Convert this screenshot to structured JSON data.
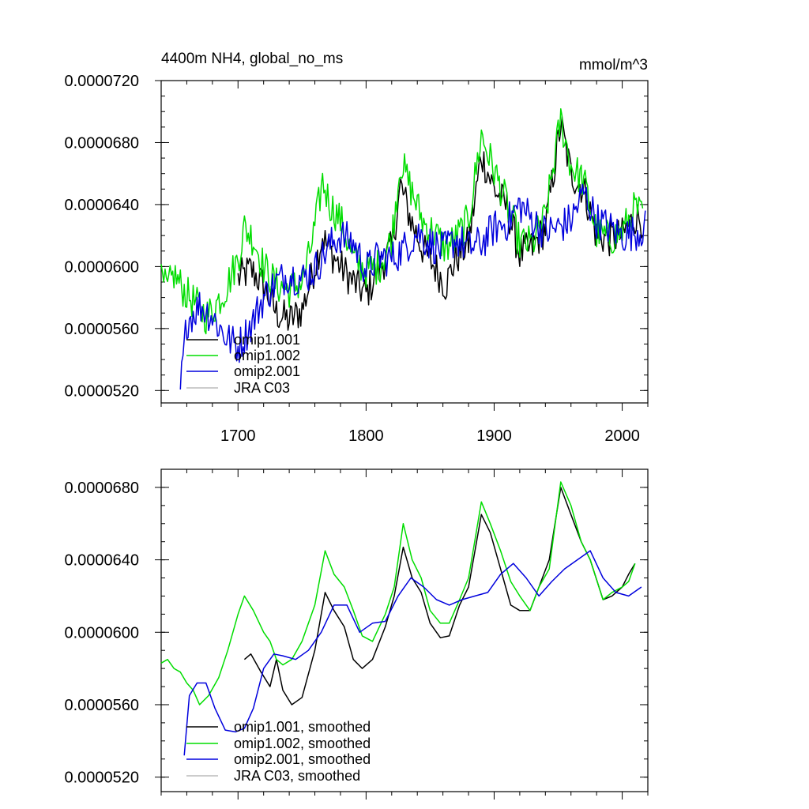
{
  "chart_data": [
    {
      "type": "line",
      "title": "4400m NH4, global_no_ms",
      "units": "mmol/m^3",
      "xlabel": "",
      "ylabel": "",
      "xlim": [
        1640,
        2020
      ],
      "ylim": [
        5.12e-05,
        7.2e-05
      ],
      "y_ticks": [
        5.2e-05,
        5.6e-05,
        6e-05,
        6.4e-05,
        6.8e-05,
        7.2e-05
      ],
      "y_tick_labels": [
        "0.0000520",
        "0.0000560",
        "0.0000600",
        "0.0000640",
        "0.0000680",
        "0.0000720"
      ],
      "x_ticks": [
        1700,
        1800,
        1900,
        2000
      ],
      "x_tick_labels": [
        "1700",
        "1800",
        "1900",
        "2000"
      ],
      "legend": [
        "omip1.001",
        "omip1.002",
        "omip2.001",
        "JRA C03"
      ],
      "series": [
        {
          "name": "omip1.001",
          "color": "#000000",
          "x_range": [
            1700,
            2016
          ],
          "x": [
            1700,
            1710,
            1720,
            1730,
            1740,
            1750,
            1760,
            1766,
            1770,
            1780,
            1790,
            1800,
            1810,
            1820,
            1827,
            1835,
            1845,
            1855,
            1862,
            1870,
            1880,
            1890,
            1900,
            1910,
            1920,
            1930,
            1940,
            1952,
            1960,
            1970,
            1980,
            1990,
            2000,
            2010,
            2016
          ],
          "y": [
            5.92e-05,
            5.98e-05,
            5.88e-05,
            5.7e-05,
            5.65e-05,
            5.72e-05,
            6e-05,
            6.2e-05,
            6.12e-05,
            6e-05,
            5.9e-05,
            5.82e-05,
            5.98e-05,
            6.12e-05,
            6.52e-05,
            6.3e-05,
            6.1e-05,
            5.98e-05,
            5.88e-05,
            6.05e-05,
            6.15e-05,
            6.72e-05,
            6.5e-05,
            6.38e-05,
            6.08e-05,
            6.12e-05,
            6.25e-05,
            6.92e-05,
            6.6e-05,
            6.5e-05,
            6.2e-05,
            6.18e-05,
            6.2e-05,
            6.32e-05,
            6.3e-05
          ]
        },
        {
          "name": "omip1.002",
          "color": "#00dd00",
          "x_range": [
            1640,
            2016
          ],
          "x": [
            1640,
            1645,
            1650,
            1655,
            1660,
            1668,
            1675,
            1680,
            1690,
            1700,
            1705,
            1712,
            1720,
            1730,
            1740,
            1750,
            1755,
            1760,
            1766,
            1772,
            1780,
            1790,
            1800,
            1810,
            1820,
            1827,
            1835,
            1845,
            1855,
            1862,
            1870,
            1880,
            1890,
            1900,
            1910,
            1920,
            1930,
            1940,
            1952,
            1960,
            1970,
            1980,
            1990,
            2000,
            2010,
            2016
          ],
          "y": [
            5.9e-05,
            5.85e-05,
            5.95e-05,
            5.88e-05,
            5.82e-05,
            5.75e-05,
            5.68e-05,
            5.72e-05,
            5.85e-05,
            6.05e-05,
            6.25e-05,
            6.18e-05,
            6e-05,
            5.88e-05,
            5.85e-05,
            5.9e-05,
            6.05e-05,
            6.25e-05,
            6.55e-05,
            6.4e-05,
            6.3e-05,
            6.05e-05,
            5.98e-05,
            6e-05,
            6.18e-05,
            6.68e-05,
            6.5e-05,
            6.28e-05,
            6.2e-05,
            6.12e-05,
            6.18e-05,
            6.3e-05,
            6.85e-05,
            6.62e-05,
            6.4e-05,
            6.15e-05,
            6.15e-05,
            6.32e-05,
            6.95e-05,
            6.65e-05,
            6.55e-05,
            6.22e-05,
            6.18e-05,
            6.22e-05,
            6.38e-05,
            6.32e-05
          ]
        },
        {
          "name": "omip2.001",
          "color": "#0000dd",
          "x_range": [
            1655,
            2018
          ],
          "x": [
            1655,
            1660,
            1670,
            1680,
            1690,
            1700,
            1710,
            1720,
            1730,
            1740,
            1750,
            1760,
            1770,
            1780,
            1790,
            1800,
            1810,
            1820,
            1830,
            1840,
            1850,
            1860,
            1870,
            1880,
            1890,
            1900,
            1910,
            1920,
            1930,
            1940,
            1950,
            1960,
            1970,
            1980,
            1990,
            2000,
            2010,
            2018
          ],
          "y": [
            5.2e-05,
            5.65e-05,
            5.75e-05,
            5.68e-05,
            5.55e-05,
            5.48e-05,
            5.62e-05,
            5.8e-05,
            5.9e-05,
            5.95e-05,
            5.92e-05,
            5.98e-05,
            6.12e-05,
            6.2e-05,
            6.15e-05,
            5.98e-05,
            6.06e-05,
            6.05e-05,
            6.12e-05,
            6.22e-05,
            6.15e-05,
            6.1e-05,
            6.18e-05,
            6.12e-05,
            6.15e-05,
            6.25e-05,
            6.28e-05,
            6.4e-05,
            6.3e-05,
            6.22e-05,
            6.25e-05,
            6.3e-05,
            6.48e-05,
            6.3e-05,
            6.25e-05,
            6.2e-05,
            6.22e-05,
            6.25e-05
          ]
        },
        {
          "name": "JRA C03",
          "color": "#bbbbbb",
          "x": [],
          "y": []
        }
      ]
    },
    {
      "type": "line",
      "title": "",
      "xlabel": "",
      "ylabel": "",
      "xlim": [
        1640,
        2020
      ],
      "ylim": [
        5.12e-05,
        6.9e-05
      ],
      "y_ticks": [
        5.2e-05,
        5.6e-05,
        6e-05,
        6.4e-05,
        6.8e-05
      ],
      "y_tick_labels": [
        "0.0000520",
        "0.0000560",
        "0.0000600",
        "0.0000640",
        "0.0000680"
      ],
      "x_ticks": [
        1700,
        1800,
        1900,
        2000
      ],
      "x_tick_labels": [
        "",
        "",
        "",
        ""
      ],
      "legend": [
        "omip1.001, smoothed",
        "omip1.002, smoothed",
        "omip2.001, smoothed",
        "JRA C03, smoothed"
      ],
      "series": [
        {
          "name": "omip1.001, smoothed",
          "color": "#000000",
          "x": [
            1705,
            1710,
            1718,
            1725,
            1730,
            1735,
            1742,
            1750,
            1760,
            1768,
            1775,
            1783,
            1790,
            1797,
            1805,
            1815,
            1822,
            1829,
            1836,
            1843,
            1850,
            1858,
            1865,
            1873,
            1880,
            1890,
            1897,
            1905,
            1913,
            1920,
            1928,
            1935,
            1943,
            1952,
            1960,
            1968,
            1975,
            1985,
            1992,
            2000,
            2005,
            2010
          ],
          "y": [
            5.85e-05,
            5.88e-05,
            5.78e-05,
            5.7e-05,
            5.85e-05,
            5.68e-05,
            5.6e-05,
            5.64e-05,
            5.9e-05,
            6.22e-05,
            6.12e-05,
            6.03e-05,
            5.85e-05,
            5.8e-05,
            5.85e-05,
            6.03e-05,
            6.2e-05,
            6.47e-05,
            6.3e-05,
            6.22e-05,
            6.05e-05,
            5.97e-05,
            5.98e-05,
            6.15e-05,
            6.25e-05,
            6.65e-05,
            6.55e-05,
            6.35e-05,
            6.15e-05,
            6.12e-05,
            6.12e-05,
            6.25e-05,
            6.4e-05,
            6.8e-05,
            6.65e-05,
            6.5e-05,
            6.4e-05,
            6.18e-05,
            6.2e-05,
            6.25e-05,
            6.32e-05,
            6.38e-05
          ]
        },
        {
          "name": "omip1.002, smoothed",
          "color": "#00dd00",
          "x": [
            1640,
            1645,
            1650,
            1655,
            1660,
            1665,
            1670,
            1677,
            1685,
            1692,
            1700,
            1705,
            1712,
            1720,
            1725,
            1730,
            1735,
            1742,
            1750,
            1760,
            1768,
            1775,
            1783,
            1790,
            1797,
            1805,
            1815,
            1822,
            1829,
            1836,
            1843,
            1850,
            1858,
            1865,
            1873,
            1880,
            1890,
            1897,
            1905,
            1913,
            1920,
            1928,
            1935,
            1943,
            1952,
            1960,
            1968,
            1975,
            1985,
            1992,
            2000,
            2005,
            2010
          ],
          "y": [
            5.83e-05,
            5.85e-05,
            5.8e-05,
            5.78e-05,
            5.72e-05,
            5.68e-05,
            5.6e-05,
            5.65e-05,
            5.75e-05,
            5.9e-05,
            6.1e-05,
            6.2e-05,
            6.12e-05,
            6e-05,
            5.95e-05,
            5.85e-05,
            5.82e-05,
            5.85e-05,
            5.95e-05,
            6.15e-05,
            6.45e-05,
            6.32e-05,
            6.25e-05,
            6.12e-05,
            5.98e-05,
            5.95e-05,
            6.1e-05,
            6.25e-05,
            6.6e-05,
            6.4e-05,
            6.3e-05,
            6.12e-05,
            6.05e-05,
            6.05e-05,
            6.18e-05,
            6.3e-05,
            6.72e-05,
            6.6e-05,
            6.45e-05,
            6.28e-05,
            6.2e-05,
            6.12e-05,
            6.25e-05,
            6.35e-05,
            6.83e-05,
            6.7e-05,
            6.5e-05,
            6.4e-05,
            6.18e-05,
            6.22e-05,
            6.25e-05,
            6.28e-05,
            6.38e-05
          ]
        },
        {
          "name": "omip2.001, smoothed",
          "color": "#0000dd",
          "x": [
            1658,
            1662,
            1668,
            1675,
            1682,
            1690,
            1698,
            1705,
            1712,
            1720,
            1728,
            1735,
            1745,
            1755,
            1765,
            1775,
            1785,
            1795,
            1805,
            1815,
            1825,
            1835,
            1845,
            1855,
            1865,
            1875,
            1885,
            1895,
            1905,
            1915,
            1925,
            1935,
            1945,
            1955,
            1965,
            1975,
            1985,
            1995,
            2005,
            2015
          ],
          "y": [
            5.32e-05,
            5.65e-05,
            5.72e-05,
            5.72e-05,
            5.58e-05,
            5.46e-05,
            5.45e-05,
            5.47e-05,
            5.58e-05,
            5.8e-05,
            5.88e-05,
            5.87e-05,
            5.85e-05,
            5.9e-05,
            6e-05,
            6.15e-05,
            6.15e-05,
            6e-05,
            6.05e-05,
            6.06e-05,
            6.2e-05,
            6.3e-05,
            6.25e-05,
            6.18e-05,
            6.15e-05,
            6.18e-05,
            6.2e-05,
            6.22e-05,
            6.32e-05,
            6.38e-05,
            6.3e-05,
            6.2e-05,
            6.28e-05,
            6.35e-05,
            6.4e-05,
            6.45e-05,
            6.3e-05,
            6.22e-05,
            6.2e-05,
            6.25e-05
          ]
        },
        {
          "name": "JRA C03, smoothed",
          "color": "#bbbbbb",
          "x": [],
          "y": []
        }
      ]
    }
  ]
}
